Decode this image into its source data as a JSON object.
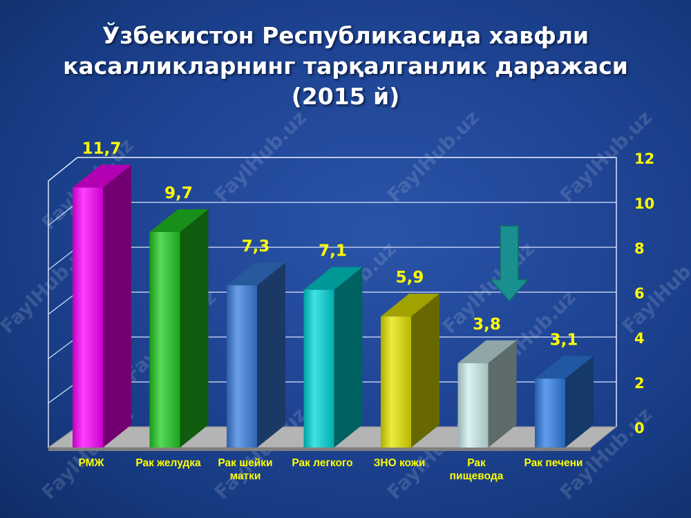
{
  "title_line1": "Ўзбекистон Республикасида хавфли",
  "title_line2": "касалликларнинг тарқалганлик даражаси",
  "title_line3": "(2015 й)",
  "watermark": "FaylHub.uz",
  "chart_data": {
    "type": "bar",
    "categories": [
      "РМЖ",
      "Рак желудка",
      "Рак шейки матки",
      "Рак легкого",
      "ЗНО кожи",
      "Рак пищевода",
      "Рак печени"
    ],
    "category_lines": [
      [
        "РМЖ"
      ],
      [
        "Рак желудка"
      ],
      [
        "Рак шейки",
        "матки"
      ],
      [
        "Рак легкого"
      ],
      [
        "ЗНО кожи"
      ],
      [
        "Рак",
        "пищевода"
      ],
      [
        "Рак печени"
      ]
    ],
    "values": [
      11.7,
      9.7,
      7.3,
      7.1,
      5.9,
      3.8,
      3.1
    ],
    "value_labels": [
      "11,7",
      "9,7",
      "7,3",
      "7,1",
      "5,9",
      "3,8",
      "3,1"
    ],
    "bar_colors": [
      "#ff00ff",
      "#22cc22",
      "#3b7fe0",
      "#00d8d8",
      "#e6e600",
      "#cfeeee",
      "#2f7ee6"
    ],
    "ylim": [
      0,
      12
    ],
    "y_ticks": [
      0,
      2,
      4,
      6,
      8,
      10,
      12
    ],
    "y_axis_side": "right",
    "grid": true,
    "label_color": "#ffff00"
  }
}
